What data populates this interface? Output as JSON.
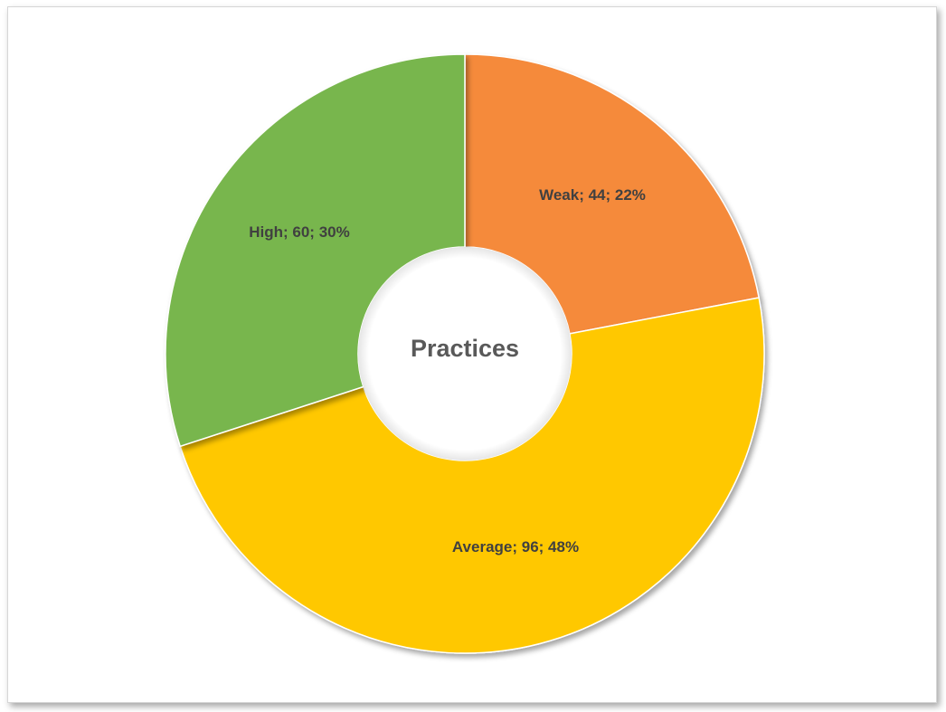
{
  "chart_data": {
    "type": "pie",
    "variant": "doughnut",
    "center_title": "Practices",
    "categories": [
      "Weak",
      "Average",
      "High"
    ],
    "values": [
      44,
      96,
      60
    ],
    "percentages": [
      22,
      48,
      30
    ],
    "labels": [
      "Weak; 44; 22%",
      "Average; 96; 48%",
      "High; 60; 30%"
    ],
    "colors": [
      "#f58a3b",
      "#ffc800",
      "#78b64d"
    ],
    "legend": "none",
    "start_angle_deg": 0,
    "direction": "clockwise"
  }
}
